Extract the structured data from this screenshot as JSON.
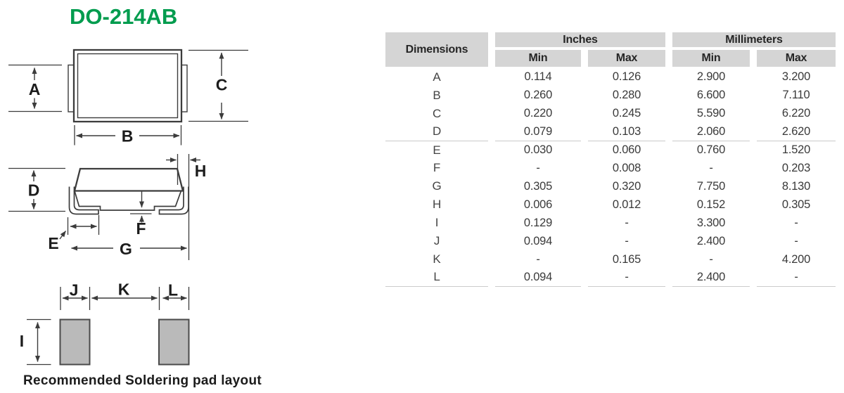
{
  "page": {
    "title": "DO-214AB",
    "caption": "Recommended Soldering pad layout"
  },
  "drawing": {
    "dim_labels": {
      "A": "A",
      "B": "B",
      "C": "C",
      "D": "D",
      "E": "E",
      "F": "F",
      "G": "G",
      "H": "H",
      "I": "I",
      "J": "J",
      "K": "K",
      "L": "L"
    }
  },
  "table": {
    "header": {
      "dimensions": "Dimensions",
      "inches": "Inches",
      "millimeters": "Millimeters",
      "min": "Min",
      "max": "Max"
    },
    "rows": [
      {
        "dim": "A",
        "inch_min": "0.114",
        "inch_max": "0.126",
        "mm_min": "2.900",
        "mm_max": "3.200"
      },
      {
        "dim": "B",
        "inch_min": "0.260",
        "inch_max": "0.280",
        "mm_min": "6.600",
        "mm_max": "7.110"
      },
      {
        "dim": "C",
        "inch_min": "0.220",
        "inch_max": "0.245",
        "mm_min": "5.590",
        "mm_max": "6.220"
      },
      {
        "dim": "D",
        "inch_min": "0.079",
        "inch_max": "0.103",
        "mm_min": "2.060",
        "mm_max": "2.620"
      },
      {
        "dim": "E",
        "inch_min": "0.030",
        "inch_max": "0.060",
        "mm_min": "0.760",
        "mm_max": "1.520"
      },
      {
        "dim": "F",
        "inch_min": "-",
        "inch_max": "0.008",
        "mm_min": "-",
        "mm_max": "0.203"
      },
      {
        "dim": "G",
        "inch_min": "0.305",
        "inch_max": "0.320",
        "mm_min": "7.750",
        "mm_max": "8.130"
      },
      {
        "dim": "H",
        "inch_min": "0.006",
        "inch_max": "0.012",
        "mm_min": "0.152",
        "mm_max": "0.305"
      },
      {
        "dim": "I",
        "inch_min": "0.129",
        "inch_max": "-",
        "mm_min": "3.300",
        "mm_max": "-"
      },
      {
        "dim": "J",
        "inch_min": "0.094",
        "inch_max": "-",
        "mm_min": "2.400",
        "mm_max": "-"
      },
      {
        "dim": "K",
        "inch_min": "-",
        "inch_max": "0.165",
        "mm_min": "-",
        "mm_max": "4.200"
      },
      {
        "dim": "L",
        "inch_min": "0.094",
        "inch_max": "-",
        "mm_min": "2.400",
        "mm_max": "-"
      }
    ],
    "group_separators_after": [
      "D",
      "L"
    ]
  },
  "colors": {
    "accent_green": "#009C4E",
    "header_gray": "#D5D5D5",
    "pad_gray": "#BABABA",
    "line_dark": "#3C3C3C"
  }
}
